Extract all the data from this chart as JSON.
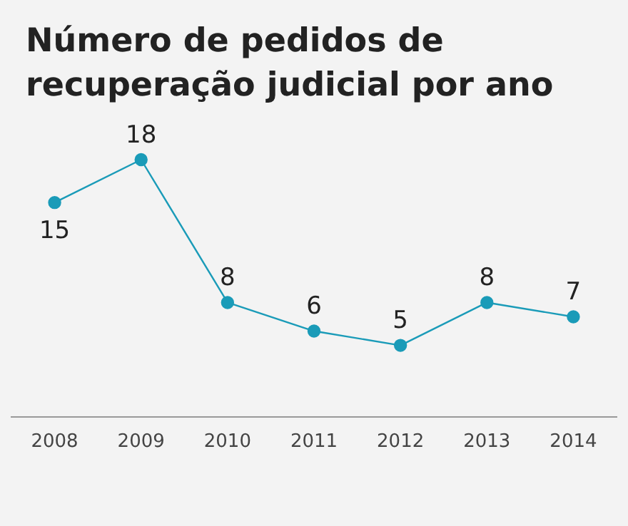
{
  "chart_data": {
    "type": "line",
    "title": "Número de pedidos de recuperação judicial por ano",
    "categories": [
      "2008",
      "2009",
      "2010",
      "2011",
      "2012",
      "2013",
      "2014"
    ],
    "series": [
      {
        "color": "#1a9bb8",
        "values": [
          15,
          18,
          8,
          6,
          5,
          8,
          7
        ]
      }
    ],
    "data_labels": true,
    "marker": "circle",
    "line_style": "solid",
    "grid": false,
    "legend": false
  }
}
